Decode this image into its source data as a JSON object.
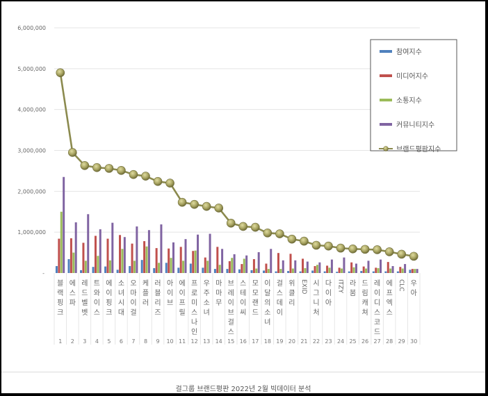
{
  "caption": "걸그룹 브랜드평판  2022년 2월 빅데이터 분석",
  "chart_data": {
    "type": "bar",
    "title": "걸그룹 브랜드평판 2022년 2월 빅데이터 분석",
    "xlabel": "",
    "ylabel": "",
    "ylim": [
      0,
      6000000
    ],
    "yticks": [
      "-",
      "1,000,000",
      "2,000,000",
      "3,000,000",
      "4,000,000",
      "5,000,000",
      "6,000,000"
    ],
    "grid": true,
    "legend_position": "upper-right",
    "categories": [
      "블랙핑크",
      "에스파",
      "레드벨벳",
      "트와이스",
      "에이핑크",
      "소녀시대",
      "오마이걸",
      "케플러",
      "러블리즈",
      "아이브",
      "에이프릴",
      "프로미스나인",
      "우주소녀",
      "마마무",
      "브레이브걸스",
      "스테이씨",
      "모모랜드",
      "이달의 소녀",
      "걸스데이",
      "위클리",
      "EXID",
      "시그니처",
      "다이아",
      "ITZY",
      "라붐",
      "드림캐쳐",
      "레이디스코드",
      "에프엑스",
      "CLC",
      "우아"
    ],
    "ranks": [
      "1",
      "2",
      "3",
      "4",
      "5",
      "6",
      "7",
      "8",
      "9",
      "10",
      "11",
      "12",
      "13",
      "14",
      "15",
      "16",
      "17",
      "18",
      "19",
      "20",
      "21",
      "22",
      "23",
      "24",
      "25",
      "26",
      "27",
      "28",
      "29",
      "30"
    ],
    "series": [
      {
        "name": "참여지수",
        "type": "bar",
        "color": "#4f81bd",
        "values": [
          170000,
          340000,
          70000,
          150000,
          160000,
          80000,
          170000,
          320000,
          120000,
          250000,
          130000,
          230000,
          130000,
          100000,
          100000,
          90000,
          70000,
          60000,
          40000,
          50000,
          40000,
          60000,
          40000,
          30000,
          40000,
          50000,
          40000,
          40000,
          40000,
          80000
        ]
      },
      {
        "name": "미디어지수",
        "type": "bar",
        "color": "#c0504d",
        "values": [
          840000,
          850000,
          740000,
          910000,
          840000,
          930000,
          720000,
          780000,
          610000,
          600000,
          640000,
          540000,
          380000,
          640000,
          290000,
          220000,
          340000,
          230000,
          490000,
          470000,
          350000,
          170000,
          180000,
          130000,
          260000,
          160000,
          130000,
          270000,
          150000,
          100000
        ]
      },
      {
        "name": "소통지수",
        "type": "bar",
        "color": "#9bbb59",
        "values": [
          1500000,
          500000,
          300000,
          420000,
          310000,
          590000,
          300000,
          650000,
          250000,
          370000,
          300000,
          550000,
          300000,
          200000,
          370000,
          350000,
          110000,
          100000,
          100000,
          110000,
          120000,
          200000,
          130000,
          110000,
          140000,
          110000,
          120000,
          110000,
          110000,
          100000
        ]
      },
      {
        "name": "커뮤니티지수",
        "type": "bar",
        "color": "#8064a2",
        "values": [
          2350000,
          1240000,
          1440000,
          1070000,
          1230000,
          880000,
          1140000,
          1050000,
          1190000,
          750000,
          830000,
          940000,
          960000,
          590000,
          460000,
          430000,
          510000,
          590000,
          310000,
          310000,
          280000,
          260000,
          330000,
          380000,
          230000,
          300000,
          330000,
          170000,
          220000,
          100000
        ]
      },
      {
        "name": "브랜드평판지수",
        "type": "line",
        "color": "#8b8a4e",
        "values": [
          4900000,
          2950000,
          2630000,
          2580000,
          2560000,
          2510000,
          2410000,
          2370000,
          2240000,
          2200000,
          1730000,
          1680000,
          1630000,
          1590000,
          1220000,
          1140000,
          1120000,
          980000,
          960000,
          830000,
          780000,
          680000,
          660000,
          610000,
          590000,
          580000,
          570000,
          520000,
          460000,
          410000
        ]
      }
    ]
  }
}
